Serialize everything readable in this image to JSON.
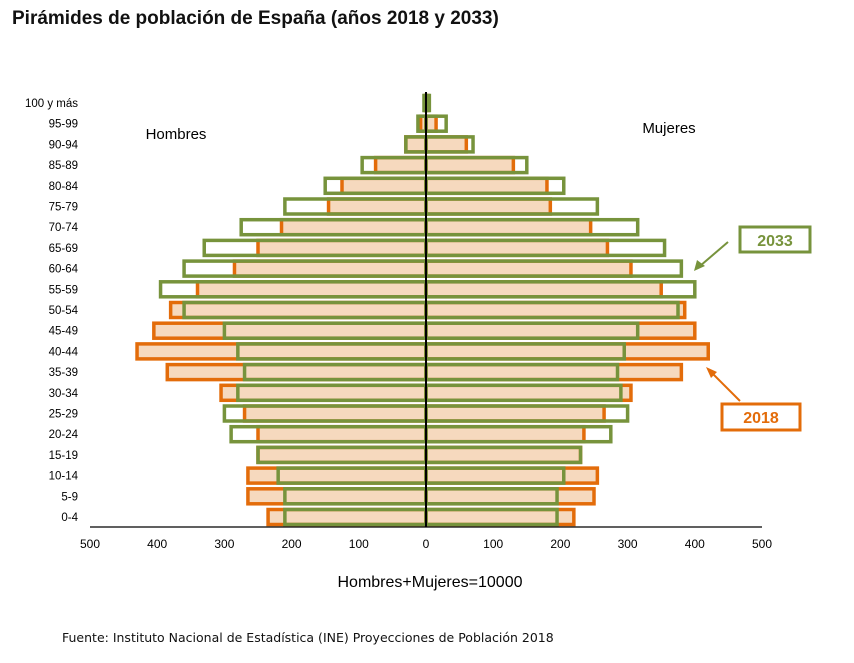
{
  "title": "Pirámides de población de España (años 2018 y 2033)",
  "source": "Fuente: Instituto Nacional de Estadística (INE) Proyecciones de Población 2018",
  "colors": {
    "series_2018": "#E36C0A",
    "series_2033": "#77933C",
    "fill_2018": "#F6D9BE",
    "fill_2033": "#FFFFFF",
    "axis": "#000000"
  },
  "chart_data": {
    "type": "bar",
    "orientation": "horizontal",
    "categories": [
      "0-4",
      "5-9",
      "10-14",
      "15-19",
      "20-24",
      "25-29",
      "30-34",
      "35-39",
      "40-44",
      "45-49",
      "50-54",
      "55-59",
      "60-64",
      "65-69",
      "70-74",
      "75-79",
      "80-84",
      "85-89",
      "90-94",
      "95-99",
      "100 y más"
    ],
    "series": [
      {
        "name": "2018",
        "sex": "Hombres",
        "values": [
          235,
          265,
          265,
          250,
          250,
          270,
          305,
          385,
          430,
          405,
          380,
          340,
          285,
          250,
          215,
          145,
          125,
          75,
          30,
          8,
          1
        ]
      },
      {
        "name": "2018",
        "sex": "Mujeres",
        "values": [
          220,
          250,
          255,
          230,
          235,
          265,
          305,
          380,
          420,
          400,
          385,
          350,
          305,
          270,
          245,
          185,
          180,
          130,
          60,
          15,
          3
        ]
      },
      {
        "name": "2033",
        "sex": "Hombres",
        "values": [
          210,
          210,
          220,
          250,
          290,
          300,
          280,
          270,
          280,
          300,
          360,
          395,
          360,
          330,
          275,
          210,
          150,
          95,
          30,
          12,
          3
        ]
      },
      {
        "name": "2033",
        "sex": "Mujeres",
        "values": [
          195,
          195,
          205,
          230,
          275,
          300,
          290,
          285,
          295,
          315,
          375,
          400,
          380,
          355,
          315,
          255,
          205,
          150,
          70,
          30,
          5
        ]
      }
    ],
    "xlabel": "Hombres+Mujeres=10000",
    "ylabel": "",
    "xlim": [
      -500,
      500
    ],
    "xticks": [
      {
        "v": -500,
        "label": "500"
      },
      {
        "v": -400,
        "label": "400"
      },
      {
        "v": -300,
        "label": "300"
      },
      {
        "v": -200,
        "label": "200"
      },
      {
        "v": -100,
        "label": "100"
      },
      {
        "v": 0,
        "label": "0"
      },
      {
        "v": 100,
        "label": "100"
      },
      {
        "v": 200,
        "label": "200"
      },
      {
        "v": 300,
        "label": "300"
      },
      {
        "v": 400,
        "label": "400"
      },
      {
        "v": 500,
        "label": "500"
      }
    ],
    "side_labels": {
      "left": "Hombres",
      "right": "Mujeres"
    },
    "callouts": [
      {
        "series": "2033",
        "text": "2033"
      },
      {
        "series": "2018",
        "text": "2018"
      }
    ],
    "grid": false
  }
}
